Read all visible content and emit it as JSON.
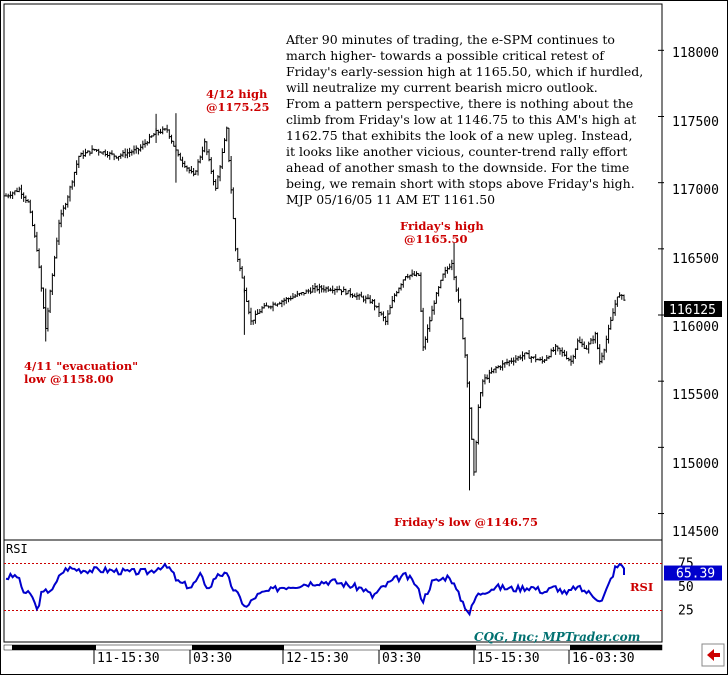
{
  "commentary": {
    "lines": [
      "After 90 minutes of trading, the e-SPM continues to",
      "march higher- towards a possible critical retest of",
      "Friday's early-session high at 1165.50, which if hurdled,",
      "will neutralize my current bearish micro outlook.",
      "From a pattern perspective, there is nothing about the",
      "climb from Friday's low at 1146.75 to this AM's high at",
      "1162.75 that exhibits the look of a new upleg. Instead,",
      "it looks like another vicious, counter-trend rally effort",
      "ahead of another smash to the downside. For the time",
      "being, we remain short with stops above Friday's high.",
      "MJP 05/16/05   11 AM ET   1161.50"
    ]
  },
  "annotations": {
    "apr12_high": [
      "4/12 high",
      "@1175.25"
    ],
    "apr11_low": [
      "4/11 \"evacuation\"",
      "low @1158.00"
    ],
    "fri_high": [
      "Friday's high",
      "@1165.50"
    ],
    "fri_low": "Friday's low @1146.75"
  },
  "price_axis": {
    "ticks": [
      "118000",
      "117500",
      "117000",
      "116500",
      "116000",
      "115500",
      "115000",
      "114500"
    ],
    "last_price": "116125"
  },
  "rsi_panel": {
    "label": "RSI",
    "series_label": "RSI",
    "ticks": [
      "75",
      "50",
      "25"
    ],
    "current": "65.39",
    "overbought": 75,
    "oversold": 25,
    "watermark": "CQG, Inc; MPTrader.com"
  },
  "time_axis": {
    "labels": [
      "11-15:30",
      "03:30",
      "12-15:30",
      "03:30",
      "15-15:30",
      "16-03:30"
    ]
  },
  "colors": {
    "price_bars": "#000000",
    "rsi_line": "#0000cc",
    "annotation_text": "#cc0000",
    "levels_line": "#cc0000",
    "watermark": "#007070",
    "last_price_bg": "#000000"
  },
  "chart_data": {
    "type": "bar",
    "title": "",
    "ylabel": "",
    "ylim": [
      114300,
      118350
    ],
    "keypoints_price": [
      [
        0,
        116900
      ],
      [
        6,
        116950
      ],
      [
        10,
        116850
      ],
      [
        14,
        116500
      ],
      [
        18,
        115900
      ],
      [
        21,
        116300
      ],
      [
        24,
        116700
      ],
      [
        28,
        116900
      ],
      [
        33,
        117200
      ],
      [
        40,
        117250
      ],
      [
        50,
        117200
      ],
      [
        60,
        117250
      ],
      [
        68,
        117380
      ],
      [
        73,
        117400
      ],
      [
        78,
        117200
      ],
      [
        85,
        117050
      ],
      [
        90,
        117300
      ],
      [
        95,
        116950
      ],
      [
        100,
        117400
      ],
      [
        104,
        116500
      ],
      [
        108,
        116200
      ],
      [
        111,
        115950
      ],
      [
        116,
        116050
      ],
      [
        124,
        116100
      ],
      [
        132,
        116150
      ],
      [
        140,
        116200
      ],
      [
        150,
        116200
      ],
      [
        158,
        116150
      ],
      [
        166,
        116100
      ],
      [
        172,
        115950
      ],
      [
        176,
        116150
      ],
      [
        181,
        116300
      ],
      [
        187,
        116300
      ],
      [
        189,
        115750
      ],
      [
        194,
        116100
      ],
      [
        198,
        116300
      ],
      [
        202,
        116400
      ],
      [
        205,
        116100
      ],
      [
        208,
        115700
      ],
      [
        210,
        115300
      ],
      [
        212,
        114800
      ],
      [
        214,
        115300
      ],
      [
        216,
        115500
      ],
      [
        222,
        115600
      ],
      [
        228,
        115650
      ],
      [
        235,
        115700
      ],
      [
        243,
        115650
      ],
      [
        249,
        115750
      ],
      [
        253,
        115700
      ],
      [
        256,
        115650
      ],
      [
        259,
        115800
      ],
      [
        263,
        115750
      ],
      [
        267,
        115850
      ],
      [
        269,
        115650
      ],
      [
        271,
        115750
      ],
      [
        274,
        115950
      ],
      [
        277,
        116150
      ],
      [
        280,
        116125
      ]
    ],
    "keypoints_rsi": [
      [
        0,
        60
      ],
      [
        5,
        62
      ],
      [
        8,
        45
      ],
      [
        12,
        40
      ],
      [
        14,
        25
      ],
      [
        16,
        42
      ],
      [
        18,
        45
      ],
      [
        22,
        50
      ],
      [
        25,
        65
      ],
      [
        28,
        70
      ],
      [
        35,
        68
      ],
      [
        45,
        68
      ],
      [
        55,
        66
      ],
      [
        65,
        66
      ],
      [
        70,
        72
      ],
      [
        74,
        70
      ],
      [
        78,
        55
      ],
      [
        84,
        50
      ],
      [
        88,
        62
      ],
      [
        92,
        48
      ],
      [
        96,
        65
      ],
      [
        100,
        62
      ],
      [
        103,
        48
      ],
      [
        106,
        38
      ],
      [
        109,
        28
      ],
      [
        113,
        40
      ],
      [
        118,
        45
      ],
      [
        125,
        50
      ],
      [
        132,
        52
      ],
      [
        140,
        55
      ],
      [
        148,
        56
      ],
      [
        155,
        52
      ],
      [
        162,
        48
      ],
      [
        166,
        40
      ],
      [
        171,
        50
      ],
      [
        176,
        58
      ],
      [
        181,
        62
      ],
      [
        185,
        55
      ],
      [
        189,
        36
      ],
      [
        193,
        55
      ],
      [
        197,
        58
      ],
      [
        201,
        62
      ],
      [
        205,
        42
      ],
      [
        208,
        30
      ],
      [
        210,
        22
      ],
      [
        213,
        40
      ],
      [
        216,
        45
      ],
      [
        222,
        50
      ],
      [
        230,
        48
      ],
      [
        238,
        50
      ],
      [
        244,
        45
      ],
      [
        249,
        50
      ],
      [
        254,
        42
      ],
      [
        258,
        50
      ],
      [
        263,
        45
      ],
      [
        267,
        40
      ],
      [
        270,
        35
      ],
      [
        273,
        52
      ],
      [
        276,
        70
      ],
      [
        279,
        74
      ],
      [
        281,
        65.39
      ]
    ]
  }
}
